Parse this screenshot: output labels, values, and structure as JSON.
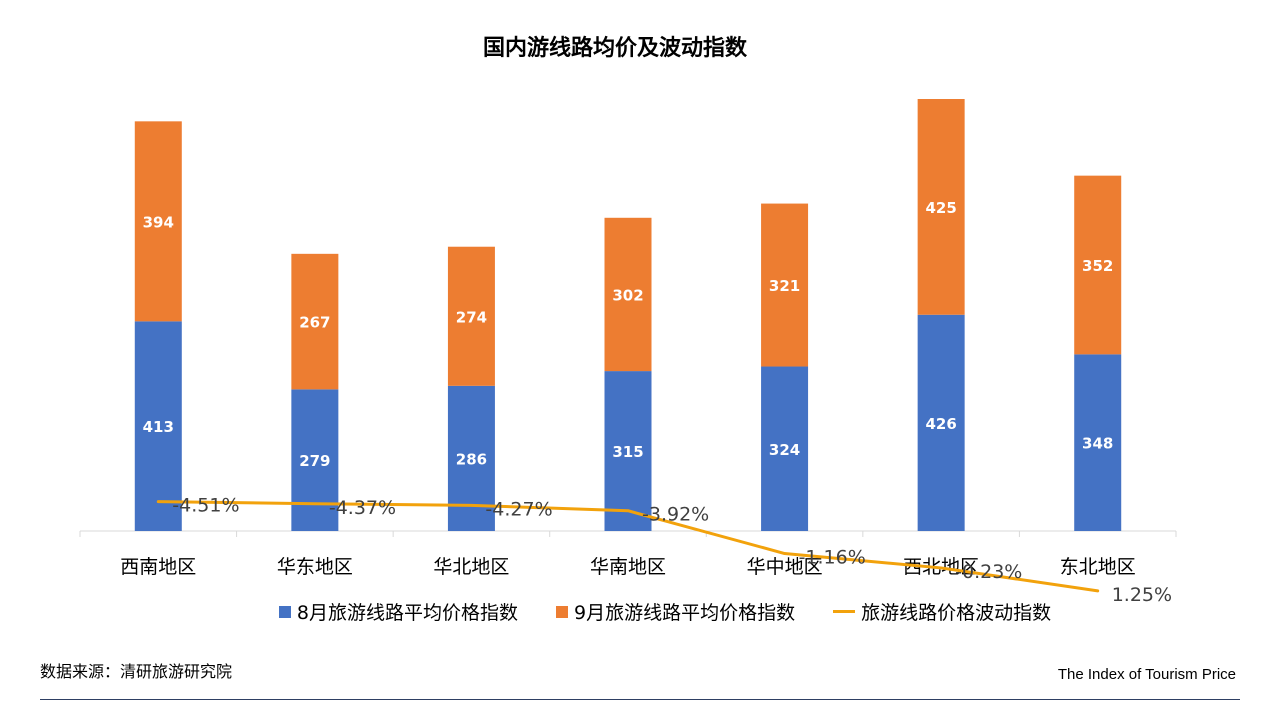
{
  "chart_data": {
    "type": "bar",
    "stacked": true,
    "title": "国内游线路均价及波动指数",
    "categories": [
      "西南地区",
      "华东地区",
      "华北地区",
      "华南地区",
      "华中地区",
      "西北地区",
      "东北地区"
    ],
    "series": [
      {
        "name": "8月旅游线路平均价格指数",
        "type": "bar",
        "color": "#4472C4",
        "values": [
          413,
          279,
          286,
          315,
          324,
          426,
          348
        ]
      },
      {
        "name": "9月旅游线路平均价格指数",
        "type": "bar",
        "color": "#ED7D31",
        "values": [
          394,
          267,
          274,
          302,
          321,
          425,
          352
        ]
      },
      {
        "name": "旅游线路价格波动指数",
        "type": "line",
        "color": "#F2A20C",
        "values": [
          -4.51,
          -4.37,
          -4.27,
          -3.92,
          -1.16,
          -0.23,
          1.25
        ],
        "labels": [
          "-4.51%",
          "-4.37%",
          "-4.27%",
          "-3.92%",
          "-1.16%",
          "-0.23%",
          "1.25%"
        ]
      }
    ],
    "legend_position": "bottom",
    "grid": false
  },
  "source_text": "数据来源：清研旅游研究院",
  "footer_text": "The Index of Tourism Price"
}
